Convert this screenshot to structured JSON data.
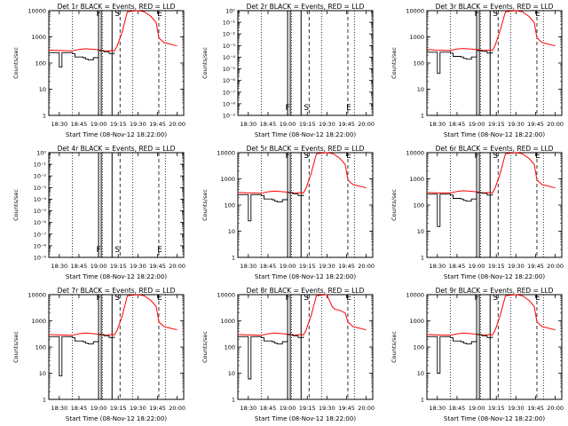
{
  "figure": {
    "xlabel": "Start Time (08-Nov-12 18:22:00)",
    "ylabel": "Counts/sec",
    "x_ticks": [
      "18:30",
      "18:45",
      "19:00",
      "19:15",
      "19:30",
      "19:45",
      "20:00"
    ],
    "colors": {
      "events": "#000000",
      "lld": "#ff0000",
      "axes": "#000000"
    }
  },
  "chart_data": [
    {
      "type": "line",
      "title": "Det 1r BLACK = Events, RED = LLD",
      "yscale": "log",
      "y_ticks": [
        "1",
        "10",
        "100",
        "1000",
        "10000"
      ],
      "ylim": [
        1,
        10000
      ],
      "xlim": [
        "18:22",
        "20:05"
      ],
      "markers": [
        {
          "label": "F",
          "x": "19:00"
        },
        {
          "label": "S",
          "x": "19:13"
        },
        {
          "label": "E",
          "x": "19:46"
        }
      ],
      "series": [
        {
          "color": "red",
          "x": [
            "18:22",
            "18:30",
            "18:40",
            "18:45",
            "18:50",
            "19:00",
            "19:05",
            "19:10",
            "19:12",
            "19:14",
            "19:18",
            "19:22",
            "19:30",
            "19:35",
            "19:40",
            "19:44",
            "19:46",
            "19:50",
            "20:00"
          ],
          "values": [
            310,
            300,
            290,
            330,
            350,
            320,
            280,
            300,
            290,
            420,
            1500,
            9000,
            10000,
            9000,
            6000,
            3500,
            900,
            600,
            450
          ]
        },
        {
          "color": "black",
          "x": [
            "18:22",
            "18:28",
            "18:30",
            "18:32",
            "18:40",
            "18:42",
            "18:48",
            "18:50",
            "18:52",
            "18:56",
            "19:00",
            "19:04",
            "19:08",
            "19:12"
          ],
          "values": [
            250,
            250,
            70,
            250,
            230,
            170,
            160,
            140,
            130,
            160,
            300,
            270,
            230,
            250
          ]
        }
      ]
    },
    {
      "type": "line",
      "title": "Det 2r BLACK = Events, RED = LLD",
      "yscale": "log",
      "y_ticks": [
        "10⁻⁹",
        "10⁻⁸",
        "10⁻⁷",
        "10⁻⁶",
        "10⁻⁵",
        "10⁻⁴",
        "10⁻³",
        "10⁻²",
        "10⁻¹",
        "10⁰"
      ],
      "ylim": [
        "10⁻⁹",
        "10⁰"
      ],
      "xlim": [
        "18:22",
        "20:05"
      ],
      "markers": [
        {
          "label": "F",
          "x": "19:00"
        },
        {
          "label": "S",
          "x": "19:13"
        },
        {
          "label": "E",
          "x": "19:46"
        }
      ],
      "series": []
    },
    {
      "type": "line",
      "title": "Det 3r BLACK = Events, RED = LLD",
      "yscale": "log",
      "y_ticks": [
        "1",
        "10",
        "100",
        "1000",
        "10000"
      ],
      "ylim": [
        1,
        10000
      ],
      "xlim": [
        "18:22",
        "20:05"
      ],
      "markers": [
        {
          "label": "F",
          "x": "19:00"
        },
        {
          "label": "S",
          "x": "19:13"
        },
        {
          "label": "E",
          "x": "19:46"
        }
      ],
      "series": [
        {
          "color": "red",
          "x": [
            "18:22",
            "18:30",
            "18:40",
            "18:45",
            "18:50",
            "19:00",
            "19:05",
            "19:10",
            "19:12",
            "19:14",
            "19:18",
            "19:22",
            "19:30",
            "19:35",
            "19:40",
            "19:44",
            "19:46",
            "19:50",
            "20:00"
          ],
          "values": [
            330,
            310,
            300,
            340,
            360,
            330,
            300,
            310,
            300,
            450,
            1800,
            9000,
            10000,
            9000,
            6000,
            3500,
            900,
            600,
            450
          ]
        },
        {
          "color": "black",
          "x": [
            "18:22",
            "18:28",
            "18:30",
            "18:32",
            "18:40",
            "18:42",
            "18:48",
            "18:50",
            "18:52",
            "18:56",
            "19:00",
            "19:04",
            "19:08",
            "19:12"
          ],
          "values": [
            260,
            260,
            40,
            260,
            240,
            180,
            170,
            150,
            140,
            170,
            300,
            280,
            240,
            260
          ]
        }
      ]
    },
    {
      "type": "line",
      "title": "Det 4r BLACK = Events, RED = LLD",
      "yscale": "log",
      "y_ticks": [
        "10⁻⁹",
        "10⁻⁸",
        "10⁻⁷",
        "10⁻⁶",
        "10⁻⁵",
        "10⁻⁴",
        "10⁻³",
        "10⁻²",
        "10⁻¹",
        "10⁰"
      ],
      "ylim": [
        "10⁻⁹",
        "10⁰"
      ],
      "xlim": [
        "18:22",
        "20:05"
      ],
      "markers": [
        {
          "label": "F",
          "x": "19:00"
        },
        {
          "label": "S",
          "x": "19:13"
        },
        {
          "label": "E",
          "x": "19:46"
        }
      ],
      "series": []
    },
    {
      "type": "line",
      "title": "Det 5r BLACK = Events, RED = LLD",
      "yscale": "log",
      "y_ticks": [
        "1",
        "10",
        "100",
        "1000",
        "10000"
      ],
      "ylim": [
        1,
        10000
      ],
      "xlim": [
        "18:22",
        "20:05"
      ],
      "markers": [
        {
          "label": "F",
          "x": "19:00"
        },
        {
          "label": "S",
          "x": "19:13"
        },
        {
          "label": "E",
          "x": "19:46"
        }
      ],
      "series": [
        {
          "color": "red",
          "x": [
            "18:22",
            "18:30",
            "18:40",
            "18:45",
            "18:50",
            "19:00",
            "19:05",
            "19:10",
            "19:12",
            "19:14",
            "19:18",
            "19:22",
            "19:30",
            "19:35",
            "19:40",
            "19:44",
            "19:46",
            "19:50",
            "20:00"
          ],
          "values": [
            300,
            290,
            280,
            320,
            340,
            310,
            280,
            300,
            290,
            420,
            1600,
            9000,
            10000,
            9000,
            6000,
            3500,
            900,
            600,
            450
          ]
        },
        {
          "color": "black",
          "x": [
            "18:22",
            "18:28",
            "18:30",
            "18:32",
            "18:40",
            "18:42",
            "18:48",
            "18:50",
            "18:52",
            "18:56",
            "19:00",
            "19:04",
            "19:08",
            "19:12"
          ],
          "values": [
            250,
            250,
            25,
            250,
            230,
            170,
            160,
            140,
            130,
            160,
            300,
            270,
            230,
            250
          ]
        }
      ]
    },
    {
      "type": "line",
      "title": "Det 6r BLACK = Events, RED = LLD",
      "yscale": "log",
      "y_ticks": [
        "1",
        "10",
        "100",
        "1000",
        "10000"
      ],
      "ylim": [
        1,
        10000
      ],
      "xlim": [
        "18:22",
        "20:05"
      ],
      "markers": [
        {
          "label": "F",
          "x": "19:00"
        },
        {
          "label": "S",
          "x": "19:13"
        },
        {
          "label": "E",
          "x": "19:46"
        }
      ],
      "series": [
        {
          "color": "red",
          "x": [
            "18:22",
            "18:30",
            "18:40",
            "18:45",
            "18:50",
            "19:00",
            "19:05",
            "19:10",
            "19:12",
            "19:14",
            "19:18",
            "19:22",
            "19:30",
            "19:35",
            "19:40",
            "19:44",
            "19:46",
            "19:50",
            "20:00"
          ],
          "values": [
            300,
            290,
            290,
            330,
            350,
            320,
            290,
            300,
            290,
            430,
            1600,
            9000,
            10000,
            9000,
            6000,
            3500,
            900,
            600,
            450
          ]
        },
        {
          "color": "black",
          "x": [
            "18:22",
            "18:28",
            "18:30",
            "18:32",
            "18:40",
            "18:42",
            "18:48",
            "18:50",
            "18:52",
            "18:56",
            "19:00",
            "19:04",
            "19:08",
            "19:12"
          ],
          "values": [
            260,
            260,
            15,
            260,
            240,
            180,
            170,
            150,
            140,
            170,
            300,
            280,
            240,
            260
          ]
        }
      ]
    },
    {
      "type": "line",
      "title": "Det 7r BLACK = Events, RED = LLD",
      "yscale": "log",
      "y_ticks": [
        "1",
        "10",
        "100",
        "1000",
        "10000"
      ],
      "ylim": [
        1,
        10000
      ],
      "xlim": [
        "18:22",
        "20:05"
      ],
      "markers": [
        {
          "label": "F",
          "x": "19:00"
        },
        {
          "label": "S",
          "x": "19:13"
        },
        {
          "label": "E",
          "x": "19:46"
        }
      ],
      "series": [
        {
          "color": "red",
          "x": [
            "18:22",
            "18:30",
            "18:40",
            "18:45",
            "18:50",
            "19:00",
            "19:05",
            "19:10",
            "19:12",
            "19:14",
            "19:18",
            "19:22",
            "19:30",
            "19:35",
            "19:40",
            "19:44",
            "19:46",
            "19:50",
            "20:00"
          ],
          "values": [
            300,
            290,
            280,
            320,
            340,
            310,
            280,
            300,
            290,
            410,
            1500,
            9000,
            10000,
            9000,
            6000,
            3500,
            900,
            600,
            450
          ]
        },
        {
          "color": "black",
          "x": [
            "18:22",
            "18:28",
            "18:30",
            "18:32",
            "18:40",
            "18:42",
            "18:48",
            "18:50",
            "18:52",
            "18:56",
            "19:00",
            "19:04",
            "19:08",
            "19:12"
          ],
          "values": [
            250,
            250,
            8,
            250,
            230,
            170,
            160,
            140,
            130,
            160,
            300,
            270,
            230,
            250
          ]
        }
      ]
    },
    {
      "type": "line",
      "title": "Det 8r BLACK = Events, RED = LLD",
      "yscale": "log",
      "y_ticks": [
        "1",
        "10",
        "100",
        "1000",
        "10000"
      ],
      "ylim": [
        1,
        10000
      ],
      "xlim": [
        "18:22",
        "20:05"
      ],
      "markers": [
        {
          "label": "F",
          "x": "19:00"
        },
        {
          "label": "S",
          "x": "19:13"
        },
        {
          "label": "E",
          "x": "19:46"
        }
      ],
      "series": [
        {
          "color": "red",
          "x": [
            "18:22",
            "18:30",
            "18:40",
            "18:45",
            "18:50",
            "19:00",
            "19:05",
            "19:10",
            "19:12",
            "19:14",
            "19:18",
            "19:22",
            "19:30",
            "19:34",
            "19:36",
            "19:40",
            "19:44",
            "19:46",
            "19:50",
            "20:00"
          ],
          "values": [
            300,
            290,
            280,
            320,
            340,
            310,
            280,
            300,
            290,
            420,
            1600,
            9000,
            10000,
            3500,
            2800,
            2500,
            2000,
            900,
            600,
            450
          ]
        },
        {
          "color": "black",
          "x": [
            "18:22",
            "18:28",
            "18:30",
            "18:32",
            "18:40",
            "18:42",
            "18:48",
            "18:50",
            "18:52",
            "18:56",
            "19:00",
            "19:04",
            "19:08",
            "19:12"
          ],
          "values": [
            250,
            250,
            6,
            250,
            230,
            170,
            160,
            140,
            130,
            160,
            300,
            270,
            230,
            250
          ]
        }
      ]
    },
    {
      "type": "line",
      "title": "Det 9r BLACK = Events, RED = LLD",
      "yscale": "log",
      "y_ticks": [
        "1",
        "10",
        "100",
        "1000",
        "10000"
      ],
      "ylim": [
        1,
        10000
      ],
      "xlim": [
        "18:22",
        "20:05"
      ],
      "markers": [
        {
          "label": "F",
          "x": "19:00"
        },
        {
          "label": "S",
          "x": "19:13"
        },
        {
          "label": "E",
          "x": "19:46"
        }
      ],
      "series": [
        {
          "color": "red",
          "x": [
            "18:22",
            "18:30",
            "18:40",
            "18:45",
            "18:50",
            "19:00",
            "19:05",
            "19:10",
            "19:12",
            "19:14",
            "19:18",
            "19:22",
            "19:30",
            "19:35",
            "19:40",
            "19:44",
            "19:46",
            "19:50",
            "20:00"
          ],
          "values": [
            300,
            290,
            280,
            320,
            340,
            310,
            280,
            300,
            290,
            420,
            1600,
            9000,
            10000,
            9000,
            6000,
            3500,
            900,
            600,
            450
          ]
        },
        {
          "color": "black",
          "x": [
            "18:22",
            "18:28",
            "18:30",
            "18:32",
            "18:40",
            "18:42",
            "18:48",
            "18:50",
            "18:52",
            "18:56",
            "19:00",
            "19:04",
            "19:08",
            "19:12"
          ],
          "values": [
            250,
            250,
            10,
            250,
            230,
            170,
            160,
            140,
            130,
            160,
            300,
            270,
            230,
            250
          ]
        }
      ]
    }
  ]
}
